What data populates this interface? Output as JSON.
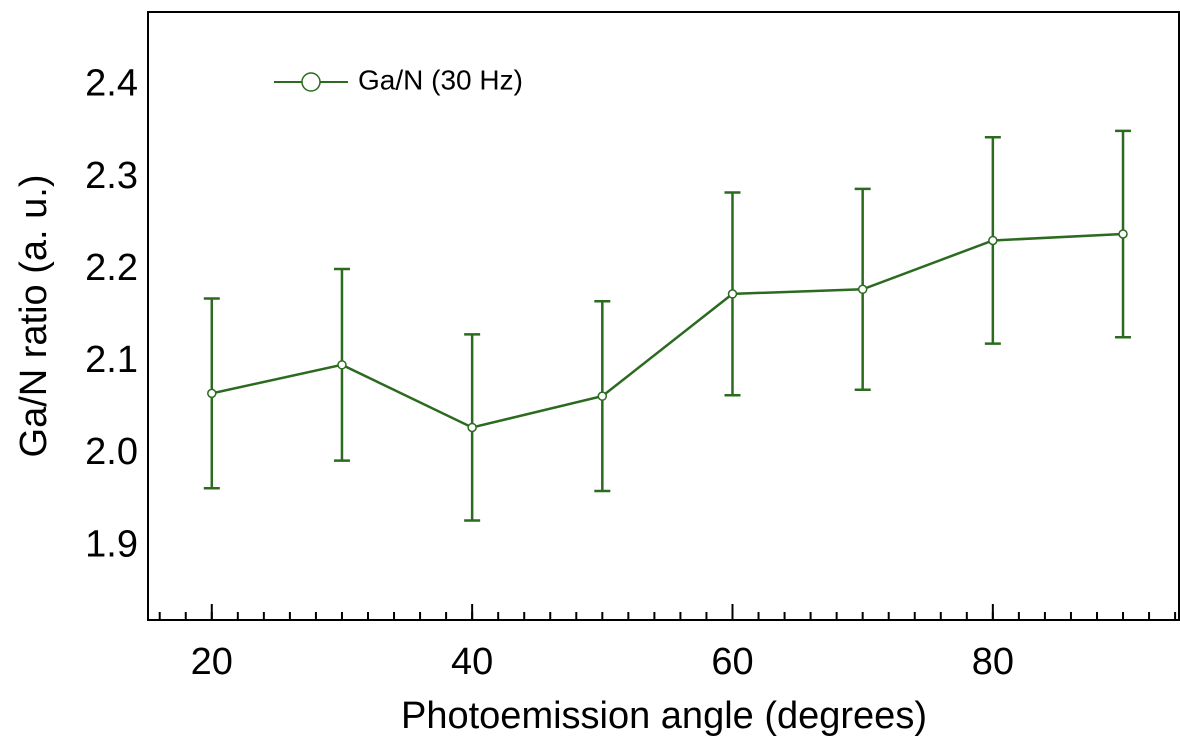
{
  "chart_data": {
    "type": "line",
    "x_label": "Photoemission angle (degrees)",
    "y_label": "Ga/N ratio (a. u.)",
    "x": [
      20,
      30,
      40,
      50,
      60,
      70,
      80,
      90
    ],
    "series": [
      {
        "name": "Ga/N (30 Hz)",
        "color": "#2b6a1f",
        "values": [
          2.066,
          2.097,
          2.029,
          2.063,
          2.174,
          2.179,
          2.232,
          2.239
        ],
        "errors": [
          0.103,
          0.104,
          0.101,
          0.103,
          0.11,
          0.109,
          0.112,
          0.112
        ]
      }
    ],
    "xlim": [
      15.1,
      94.3
    ],
    "ylim": [
      1.82,
      2.48
    ],
    "xticks": [
      20,
      40,
      60,
      80
    ],
    "yticks": [
      1.9,
      {
        "value": 2.0,
        "label": "2.0"
      },
      2.1,
      2.2,
      2.3,
      2.4
    ],
    "legend": "top-left"
  }
}
